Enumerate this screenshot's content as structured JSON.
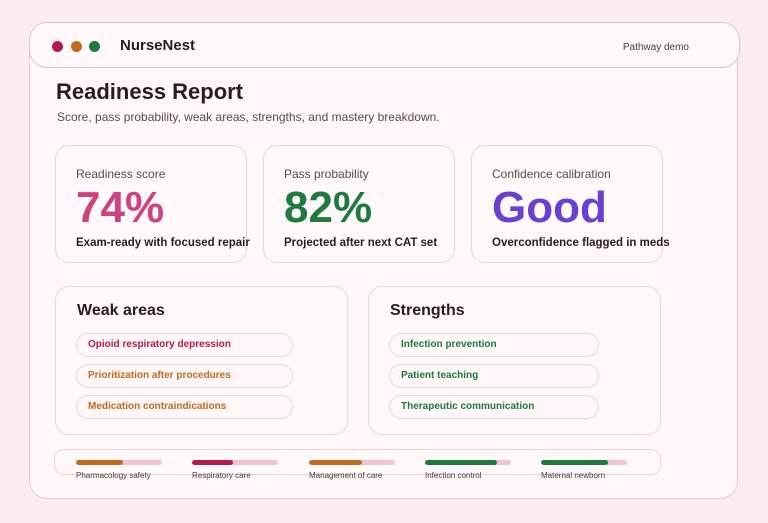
{
  "app": {
    "title": "NurseNest",
    "badge": "Pathway demo"
  },
  "page": {
    "title": "Readiness Report",
    "subtitle": "Score, pass probability, weak areas, strengths, and mastery breakdown."
  },
  "metrics": [
    {
      "label": "Readiness score",
      "value": "74%",
      "note": "Exam-ready with focused repair",
      "color": "#d0417f"
    },
    {
      "label": "Pass probability",
      "value": "82%",
      "note": "Projected after next CAT set",
      "color": "#1f7a3f"
    },
    {
      "label": "Confidence calibration",
      "value": "Good",
      "note": "Overconfidence flagged in meds",
      "color": "#6b3fd4"
    }
  ],
  "weak_areas": {
    "title": "Weak areas",
    "items": [
      {
        "label": "Opioid respiratory depression",
        "color": "#b8194a"
      },
      {
        "label": "Prioritization after procedures",
        "color": "#c06a1e"
      },
      {
        "label": "Medication contraindications",
        "color": "#c06a1e"
      }
    ]
  },
  "strengths": {
    "title": "Strengths",
    "items": [
      {
        "label": "Infection prevention",
        "color": "#1f7a3f"
      },
      {
        "label": "Patient teaching",
        "color": "#1f7a3f"
      },
      {
        "label": "Therapeutic communication",
        "color": "#1f7a3f"
      }
    ]
  },
  "mastery": [
    {
      "name": "Pharmacology safety",
      "level": 0.55,
      "color": "#c06a1e"
    },
    {
      "name": "Respiratory care",
      "level": 0.48,
      "color": "#b8194a"
    },
    {
      "name": "Management of care",
      "level": 0.62,
      "color": "#c06a1e"
    },
    {
      "name": "Infection control",
      "level": 0.84,
      "color": "#1f7a3f"
    },
    {
      "name": "Maternal newborn",
      "level": 0.78,
      "color": "#1f7a3f"
    }
  ]
}
